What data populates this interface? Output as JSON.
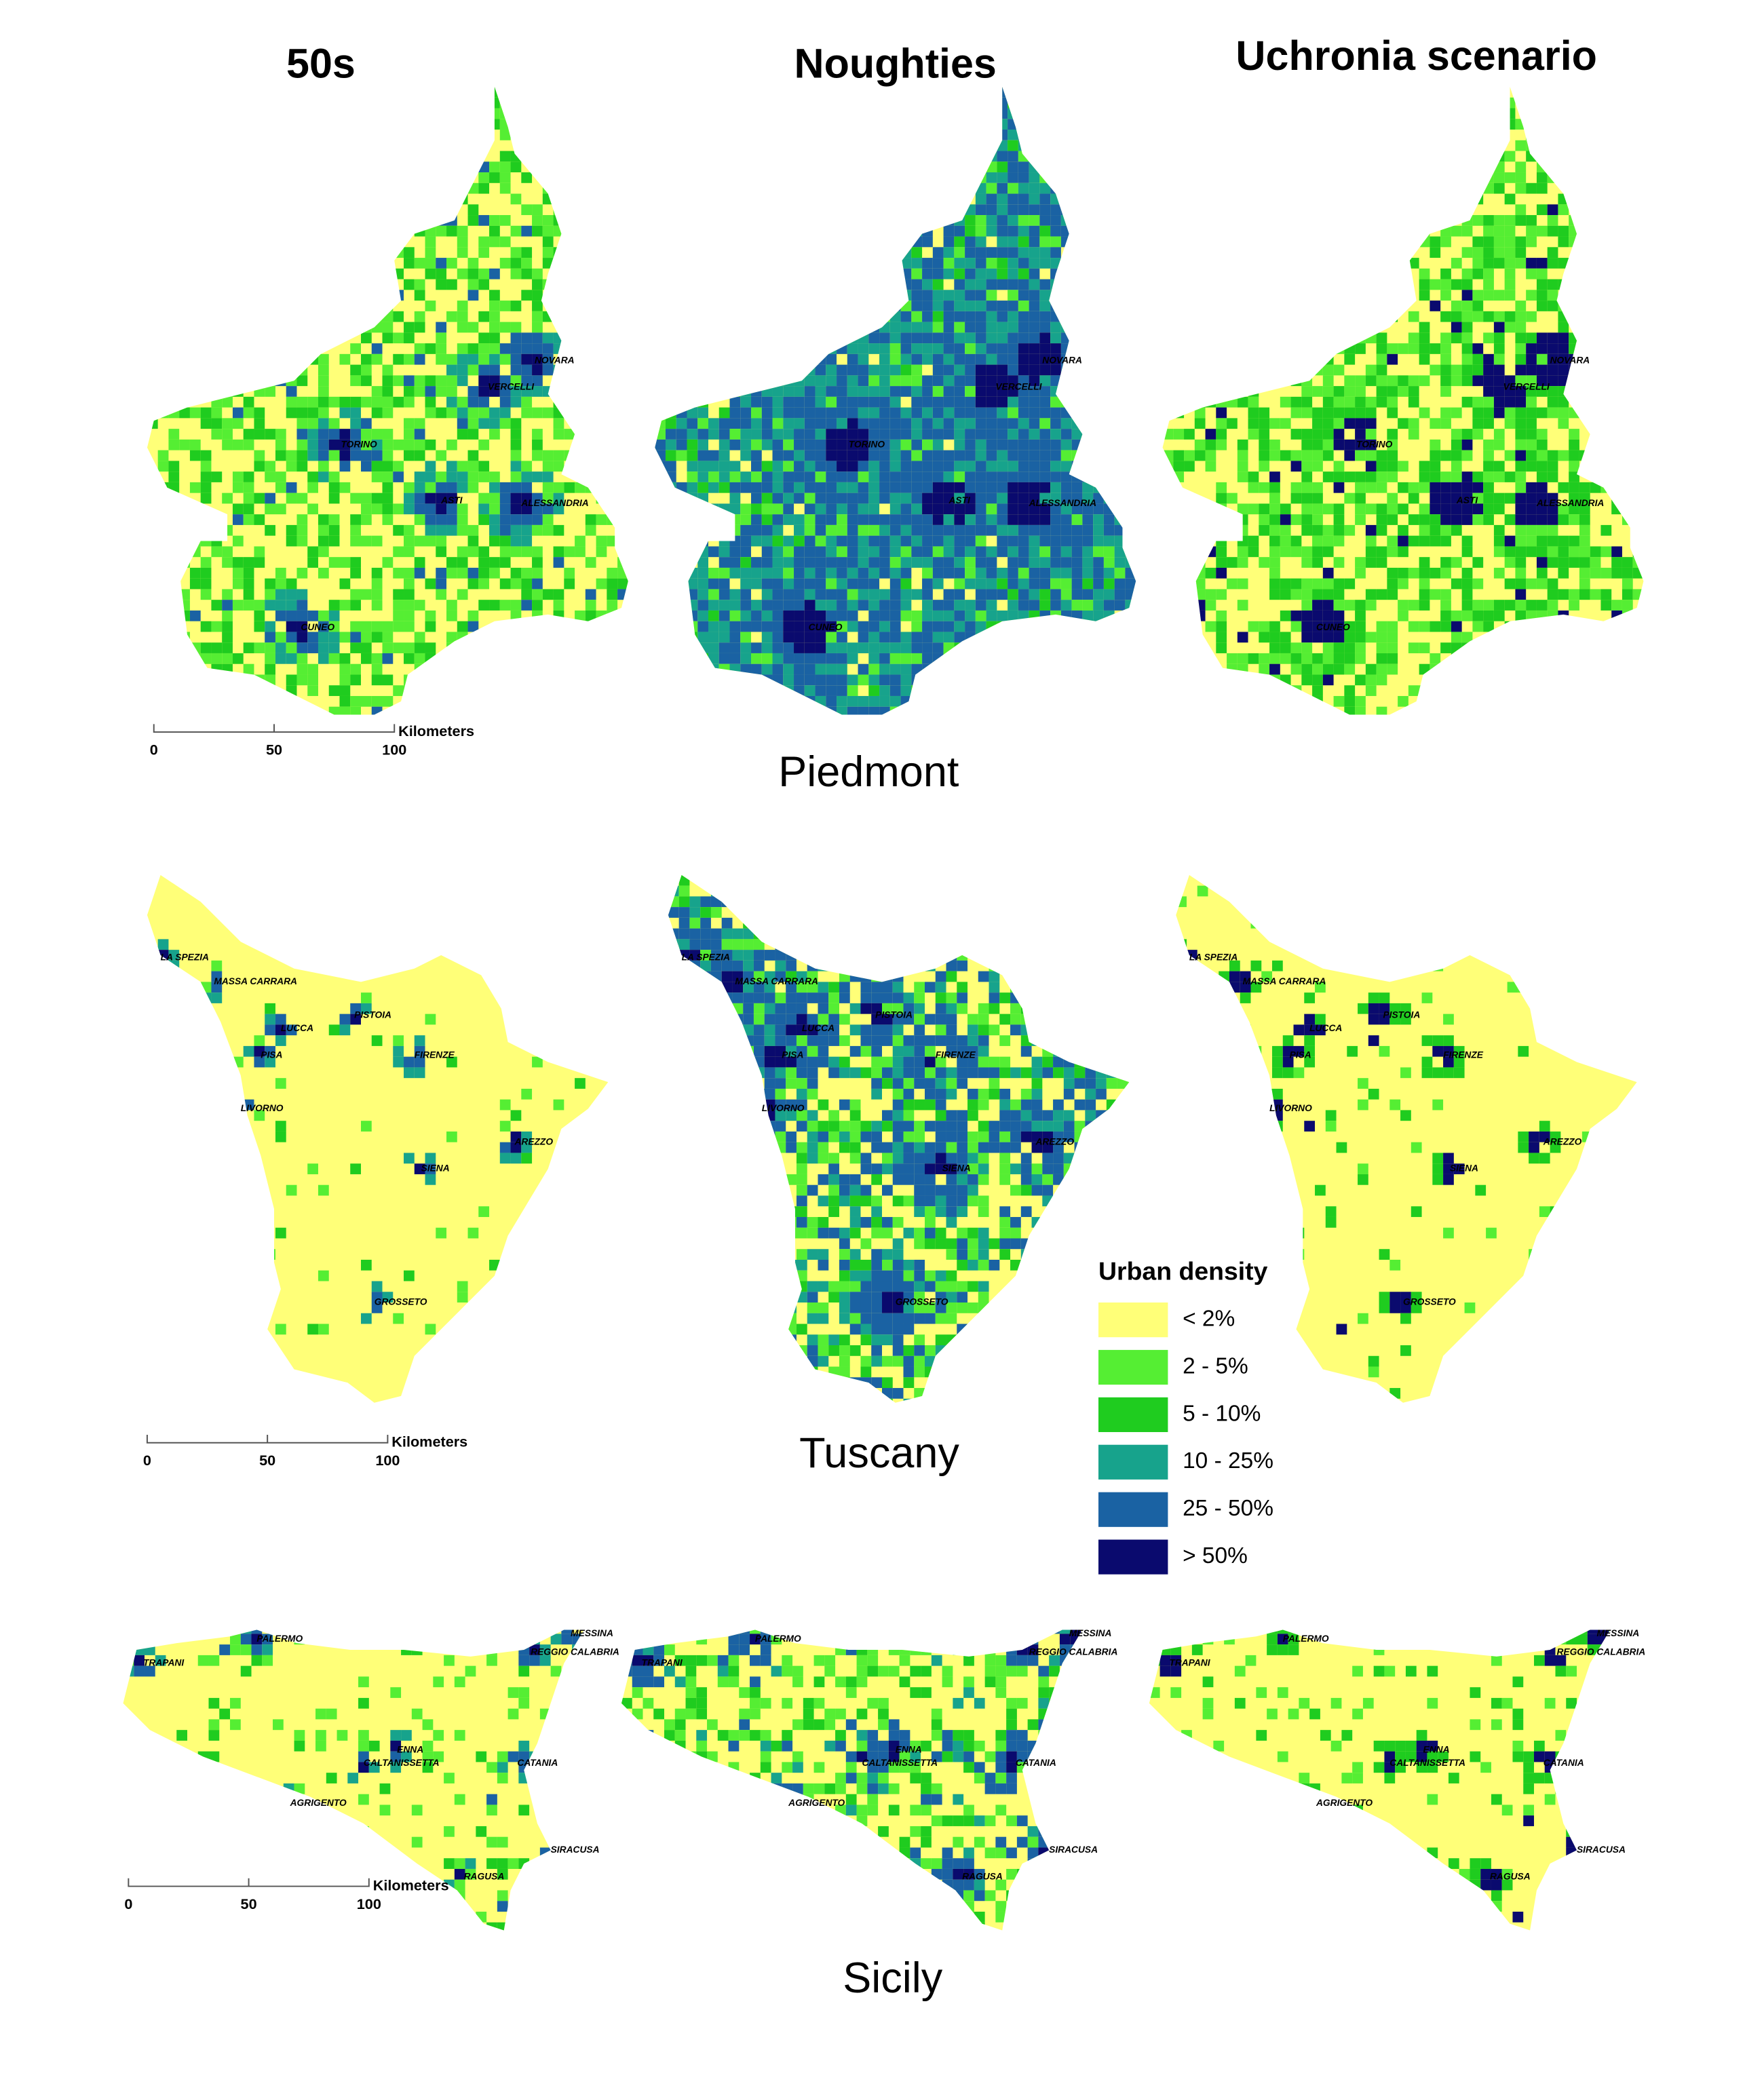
{
  "columns": [
    "50s",
    "Noughties",
    "Uchronia scenario"
  ],
  "regions": [
    {
      "name": "Piedmont",
      "cities": [
        "NOVARA",
        "VERCELLI",
        "TORINO",
        "ASTI",
        "ALESSANDRIA",
        "CUNEO"
      ],
      "scale": {
        "unit": "Kilometers",
        "ticks": [
          0,
          50,
          100
        ]
      }
    },
    {
      "name": "Tuscany",
      "cities": [
        "LA SPEZIA",
        "MASSA CARRARA",
        "PISTOIA",
        "LUCCA",
        "FIRENZE",
        "PISA",
        "LIVORNO",
        "AREZZO",
        "SIENA",
        "GROSSETO"
      ],
      "scale": {
        "unit": "Kilometers",
        "ticks": [
          0,
          50,
          100
        ]
      }
    },
    {
      "name": "Sicily",
      "cities": [
        "PALERMO",
        "TRAPANI",
        "MESSINA",
        "REGGIO CALABRIA",
        "ENNA",
        "CALTANISSETTA",
        "CATANIA",
        "AGRIGENTO",
        "SIRACUSA",
        "RAGUSA"
      ],
      "scale": {
        "unit": "Kilometers",
        "ticks": [
          0,
          50,
          100
        ]
      }
    }
  ],
  "legend": {
    "title": "Urban density",
    "items": [
      {
        "label": "< 2%",
        "color": "#ffff78"
      },
      {
        "label": "2 - 5%",
        "color": "#55ee33"
      },
      {
        "label": "5 - 10%",
        "color": "#1fcc1f"
      },
      {
        "label": "10 - 25%",
        "color": "#17a38c"
      },
      {
        "label": "25 - 50%",
        "color": "#1a62a3"
      },
      {
        "label": "> 50%",
        "color": "#0a0a6e"
      }
    ]
  }
}
